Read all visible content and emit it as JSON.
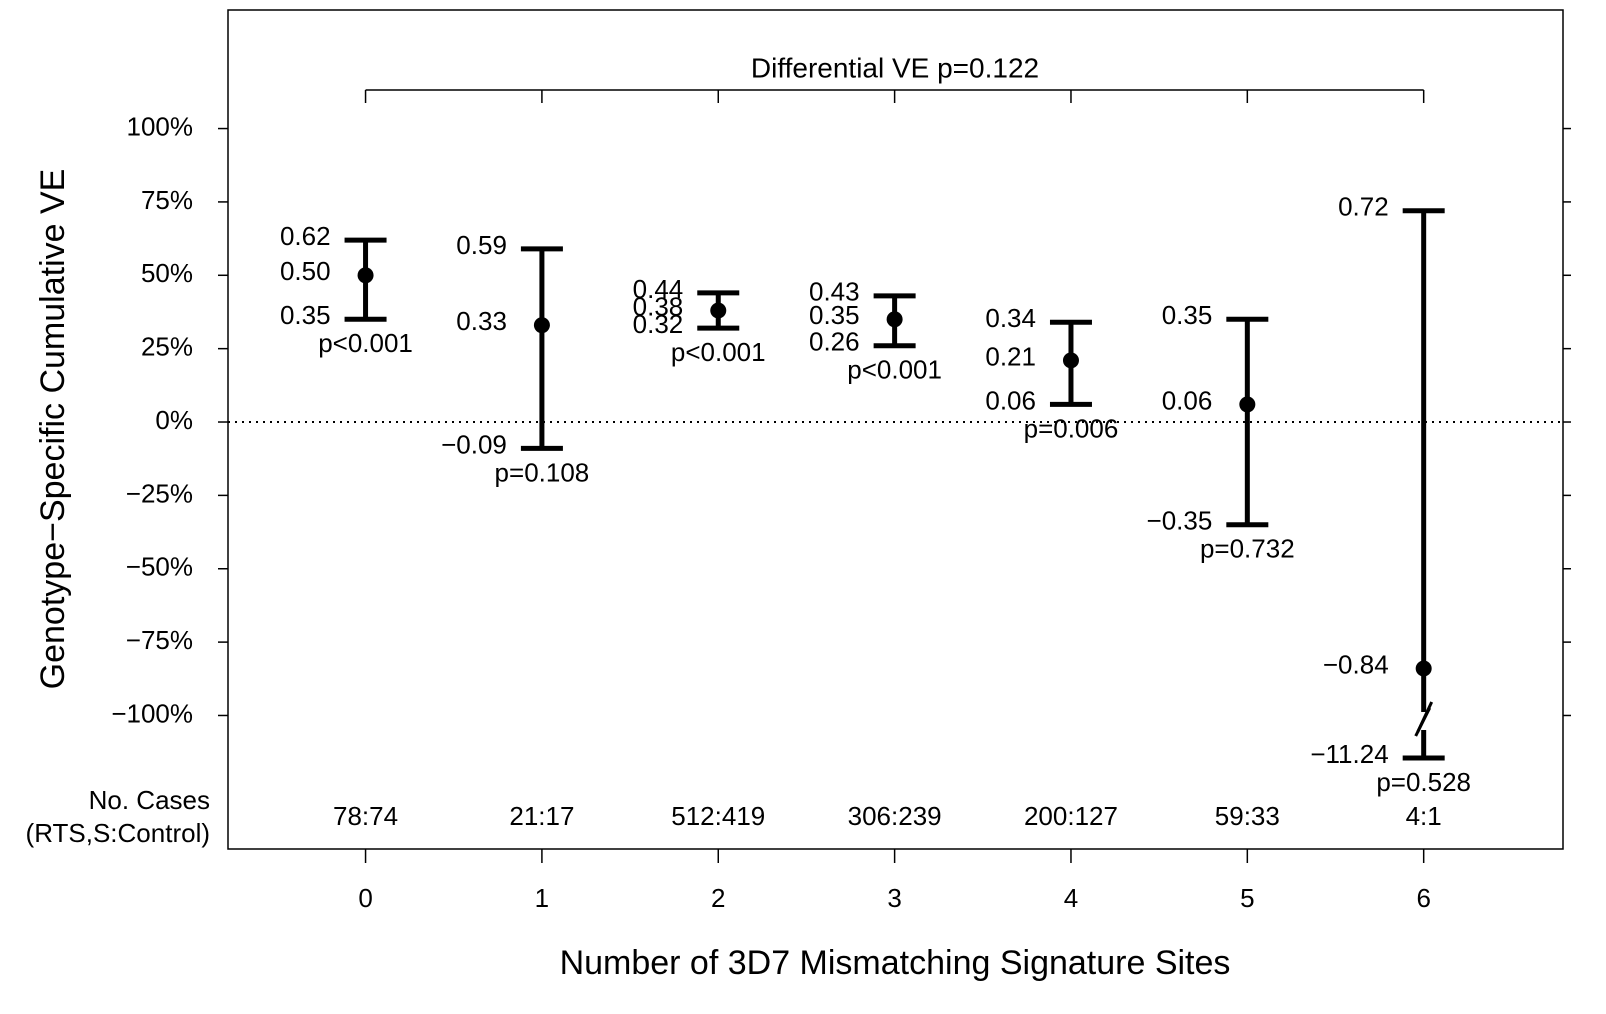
{
  "chart_data": {
    "type": "errorbar",
    "title": "Differential VE p=0.122",
    "x_label": "Number of 3D7 Mismatching Signature Sites",
    "y_label": "Genotype−Specific Cumulative VE",
    "x": [
      0,
      1,
      2,
      3,
      4,
      5,
      6
    ],
    "xlim": [
      -0.78,
      6.79
    ],
    "xticks": [
      0,
      1,
      2,
      3,
      4,
      5,
      6
    ],
    "ylim": [
      -145.5,
      140.4
    ],
    "yticks": [
      {
        "value": 100,
        "label": "100%"
      },
      {
        "value": 75,
        "label": "75%"
      },
      {
        "value": 50,
        "label": "50%"
      },
      {
        "value": 25,
        "label": "25%"
      },
      {
        "value": 0,
        "label": "0%"
      },
      {
        "value": -25,
        "label": "−25%"
      },
      {
        "value": -50,
        "label": "−50%"
      },
      {
        "value": -75,
        "label": "−75%"
      },
      {
        "value": -100,
        "label": "−100%"
      }
    ],
    "reference_line": 0,
    "color": "#000000",
    "estimate": {
      "values": [
        50,
        33,
        38,
        35,
        21,
        6,
        -84
      ],
      "value_labels": [
        "0.50",
        "0.33",
        "0.38",
        "0.35",
        "0.21",
        "0.06",
        "−0.84"
      ]
    },
    "upper": {
      "values": [
        62,
        59,
        44,
        43,
        34,
        35,
        72
      ],
      "value_labels": [
        "0.62",
        "0.59",
        "0.44",
        "0.43",
        "0.34",
        "0.35",
        "0.72"
      ]
    },
    "lower": {
      "values": [
        35,
        -9,
        32,
        26,
        6,
        -35,
        -1124
      ],
      "value_labels": [
        "0.35",
        "−0.09",
        "0.32",
        "0.26",
        "0.06",
        "−0.35",
        "−11.24"
      ]
    },
    "p_values": [
      "p<0.001",
      "p=0.108",
      "p<0.001",
      "p<0.001",
      "p=0.006",
      "p=0.732",
      "p=0.528"
    ],
    "cases_label": [
      "No. Cases",
      "(RTS,S:Control)"
    ],
    "cases": [
      "78:74",
      "21:17",
      "512:419",
      "306:239",
      "200:127",
      "59:33",
      "4:1"
    ]
  }
}
